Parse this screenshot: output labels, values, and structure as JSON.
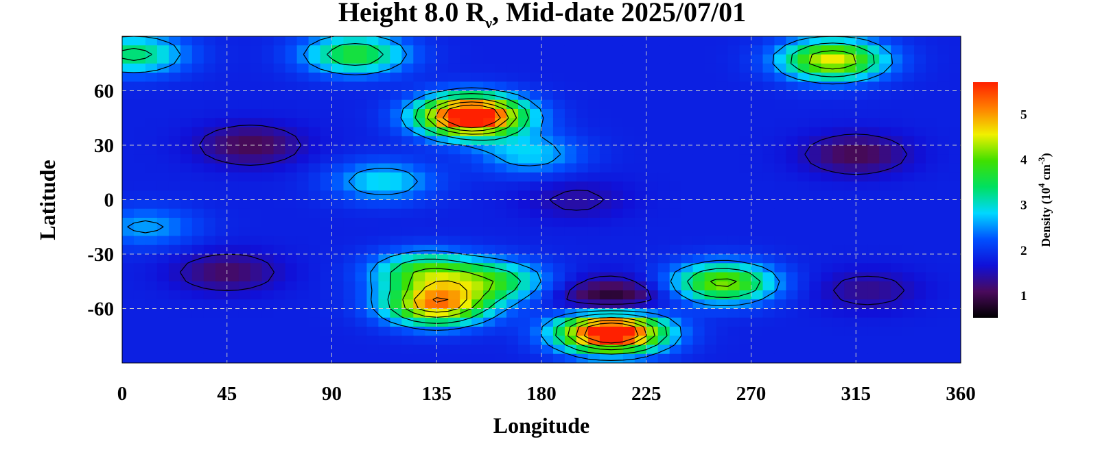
{
  "chart_data": {
    "type": "heatmap",
    "title": {
      "prefix": "Height 8.0 R",
      "subscript": "ν",
      "suffix": ", Mid-date 2025/07/01"
    },
    "xlabel": "Longitude",
    "ylabel": "Latitude",
    "xlim": [
      0,
      360
    ],
    "ylim": [
      -90,
      90
    ],
    "x_ticks": [
      "0",
      "45",
      "90",
      "135",
      "180",
      "225",
      "270",
      "315",
      "360"
    ],
    "y_ticks": [
      "60",
      "30",
      "0",
      "-30",
      "-60"
    ],
    "grid": true,
    "colorbar": {
      "label_prefix": "Density (10",
      "label_exp1": "4",
      "label_mid": " cm",
      "label_exp2": "-3",
      "label_suffix": ")",
      "ticks": [
        "1",
        "2",
        "3",
        "4",
        "5"
      ],
      "range": [
        0.5,
        5.7
      ],
      "colormap": [
        "#000000",
        "#4a0a5c",
        "#1010d8",
        "#0050ff",
        "#00d8ff",
        "#00e060",
        "#40e000",
        "#f0f000",
        "#ff8000",
        "#ff2000"
      ]
    },
    "background_level": 1.8,
    "features": [
      {
        "lon": 150,
        "lat": 46,
        "level": 6.5
      },
      {
        "lon": 210,
        "lat": -73,
        "level": 6.5
      },
      {
        "lon": 135,
        "lat": -58,
        "level": 5.0
      },
      {
        "lon": 305,
        "lat": 77,
        "level": 4.6
      },
      {
        "lon": 100,
        "lat": 80,
        "level": 3.7
      },
      {
        "lon": 258,
        "lat": -46,
        "level": 4.2
      },
      {
        "lon": 130,
        "lat": -40,
        "level": 3.8
      },
      {
        "lon": 160,
        "lat": -45,
        "level": 3.5
      },
      {
        "lon": 112,
        "lat": 10,
        "level": 2.9
      },
      {
        "lon": 175,
        "lat": 25,
        "level": 2.8
      },
      {
        "lon": 5,
        "lat": 80,
        "level": 3.4
      },
      {
        "lon": 10,
        "lat": -15,
        "level": 2.6
      },
      {
        "lon": 55,
        "lat": 30,
        "level": 1.0
      },
      {
        "lon": 315,
        "lat": 25,
        "level": 1.0
      },
      {
        "lon": 45,
        "lat": -40,
        "level": 1.1
      },
      {
        "lon": 210,
        "lat": -55,
        "level": 0.6
      },
      {
        "lon": 195,
        "lat": 0,
        "level": 1.4
      },
      {
        "lon": 320,
        "lat": -50,
        "level": 1.3
      }
    ]
  }
}
